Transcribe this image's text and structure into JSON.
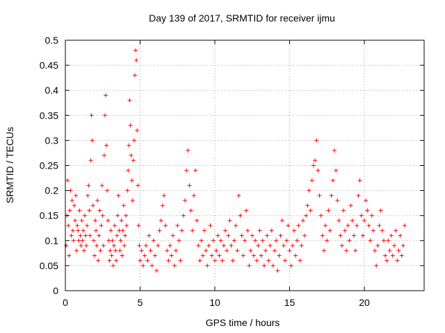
{
  "chart_data": {
    "type": "scatter",
    "title": "Day 139 of 2017, SRMTID for receiver ijmu",
    "xlabel": "GPS time / hours",
    "ylabel": "SRMTID / TECUs",
    "xlim": [
      0,
      24
    ],
    "ylim": [
      0,
      0.5
    ],
    "x_ticks": [
      0,
      5,
      10,
      15,
      20
    ],
    "x_tick_labels": [
      "0",
      "5",
      "10",
      "15",
      "20"
    ],
    "y_ticks": [
      0,
      0.05,
      0.1,
      0.15,
      0.2,
      0.25,
      0.3,
      0.35,
      0.4,
      0.45,
      0.5
    ],
    "y_tick_labels": [
      "0",
      "0.05",
      "0.1",
      "0.15",
      "0.2",
      "0.25",
      "0.3",
      "0.35",
      "0.4",
      "0.45",
      "0.5"
    ],
    "grid": true,
    "marker": "plus",
    "color": "#ff0000",
    "series": [
      {
        "points": [
          [
            0.05,
            0.09
          ],
          [
            0.1,
            0.15
          ],
          [
            0.15,
            0.22
          ],
          [
            0.2,
            0.13
          ],
          [
            0.25,
            0.07
          ],
          [
            0.3,
            0.16
          ],
          [
            0.35,
            0.2
          ],
          [
            0.4,
            0.11
          ],
          [
            0.45,
            0.18
          ],
          [
            0.5,
            0.12
          ],
          [
            0.55,
            0.1
          ],
          [
            0.6,
            0.17
          ],
          [
            0.65,
            0.14
          ],
          [
            0.7,
            0.19
          ],
          [
            0.75,
            0.08
          ],
          [
            0.8,
            0.13
          ],
          [
            0.85,
            0.12
          ],
          [
            0.9,
            0.1
          ],
          [
            0.95,
            0.16
          ],
          [
            1.0,
            0.11
          ],
          [
            1.05,
            0.09
          ],
          [
            1.1,
            0.14
          ],
          [
            1.15,
            0.1
          ],
          [
            1.2,
            0.12
          ],
          [
            1.25,
            0.08
          ],
          [
            1.3,
            0.15
          ],
          [
            1.35,
            0.11
          ],
          [
            1.4,
            0.09
          ],
          [
            1.45,
            0.13
          ],
          [
            1.5,
            0.19
          ],
          [
            1.55,
            0.21
          ],
          [
            1.6,
            0.16
          ],
          [
            1.65,
            0.11
          ],
          [
            1.7,
            0.26
          ],
          [
            1.75,
            0.35
          ],
          [
            1.8,
            0.3
          ],
          [
            1.85,
            0.17
          ],
          [
            1.9,
            0.1
          ],
          [
            1.95,
            0.07
          ],
          [
            2.0,
            0.14
          ],
          [
            2.05,
            0.12
          ],
          [
            2.1,
            0.09
          ],
          [
            2.15,
            0.18
          ],
          [
            2.2,
            0.06
          ],
          [
            2.25,
            0.11
          ],
          [
            2.3,
            0.16
          ],
          [
            2.35,
            0.08
          ],
          [
            2.4,
            0.13
          ],
          [
            2.45,
            0.21
          ],
          [
            2.5,
            0.15
          ],
          [
            2.55,
            0.09
          ],
          [
            2.6,
            0.27
          ],
          [
            2.65,
            0.35
          ],
          [
            2.7,
            0.39
          ],
          [
            2.75,
            0.29
          ],
          [
            2.8,
            0.2
          ],
          [
            2.85,
            0.14
          ],
          [
            2.9,
            0.1
          ],
          [
            2.95,
            0.06
          ],
          [
            3.0,
            0.08
          ],
          [
            3.05,
            0.12
          ],
          [
            3.1,
            0.07
          ],
          [
            3.15,
            0.1
          ],
          [
            3.2,
            0.05
          ],
          [
            3.25,
            0.09
          ],
          [
            3.3,
            0.13
          ],
          [
            3.35,
            0.08
          ],
          [
            3.4,
            0.06
          ],
          [
            3.45,
            0.11
          ],
          [
            3.5,
            0.15
          ],
          [
            3.55,
            0.19
          ],
          [
            3.6,
            0.12
          ],
          [
            3.65,
            0.08
          ],
          [
            3.7,
            0.1
          ],
          [
            3.75,
            0.14
          ],
          [
            3.8,
            0.07
          ],
          [
            3.85,
            0.12
          ],
          [
            3.9,
            0.17
          ],
          [
            3.95,
            0.09
          ],
          [
            4.0,
            0.11
          ],
          [
            4.05,
            0.15
          ],
          [
            4.1,
            0.13
          ],
          [
            4.15,
            0.2
          ],
          [
            4.2,
            0.24
          ],
          [
            4.25,
            0.29
          ],
          [
            4.3,
            0.38
          ],
          [
            4.35,
            0.33
          ],
          [
            4.4,
            0.27
          ],
          [
            4.45,
            0.22
          ],
          [
            4.5,
            0.18
          ],
          [
            4.55,
            0.26
          ],
          [
            4.6,
            0.3
          ],
          [
            4.65,
            0.43
          ],
          [
            4.7,
            0.48
          ],
          [
            4.75,
            0.46
          ],
          [
            4.8,
            0.32
          ],
          [
            4.85,
            0.21
          ],
          [
            4.9,
            0.13
          ],
          [
            4.95,
            0.09
          ],
          [
            5.0,
            0.06
          ],
          [
            5.1,
            0.08
          ],
          [
            5.2,
            0.05
          ],
          [
            5.3,
            0.07
          ],
          [
            5.4,
            0.09
          ],
          [
            5.5,
            0.06
          ],
          [
            5.6,
            0.11
          ],
          [
            5.7,
            0.08
          ],
          [
            5.8,
            0.05
          ],
          [
            5.9,
            0.1
          ],
          [
            6.0,
            0.07
          ],
          [
            6.1,
            0.04
          ],
          [
            6.2,
            0.09
          ],
          [
            6.3,
            0.12
          ],
          [
            6.4,
            0.14
          ],
          [
            6.5,
            0.17
          ],
          [
            6.6,
            0.19
          ],
          [
            6.7,
            0.13
          ],
          [
            6.8,
            0.08
          ],
          [
            6.9,
            0.06
          ],
          [
            7.0,
            0.09
          ],
          [
            7.1,
            0.07
          ],
          [
            7.2,
            0.11
          ],
          [
            7.3,
            0.05
          ],
          [
            7.4,
            0.08
          ],
          [
            7.5,
            0.13
          ],
          [
            7.6,
            0.1
          ],
          [
            7.7,
            0.06
          ],
          [
            7.8,
            0.12
          ],
          [
            7.9,
            0.15
          ],
          [
            8.0,
            0.18
          ],
          [
            8.1,
            0.24
          ],
          [
            8.2,
            0.28
          ],
          [
            8.3,
            0.21
          ],
          [
            8.4,
            0.16
          ],
          [
            8.5,
            0.12
          ],
          [
            8.6,
            0.19
          ],
          [
            8.7,
            0.24
          ],
          [
            8.8,
            0.14
          ],
          [
            8.9,
            0.09
          ],
          [
            9.0,
            0.06
          ],
          [
            9.1,
            0.1
          ],
          [
            9.2,
            0.07
          ],
          [
            9.3,
            0.12
          ],
          [
            9.4,
            0.08
          ],
          [
            9.5,
            0.05
          ],
          [
            9.6,
            0.09
          ],
          [
            9.7,
            0.13
          ],
          [
            9.8,
            0.07
          ],
          [
            9.9,
            0.1
          ],
          [
            10.0,
            0.06
          ],
          [
            10.1,
            0.08
          ],
          [
            10.2,
            0.11
          ],
          [
            10.3,
            0.07
          ],
          [
            10.4,
            0.1
          ],
          [
            10.5,
            0.06
          ],
          [
            10.6,
            0.09
          ],
          [
            10.7,
            0.12
          ],
          [
            10.8,
            0.08
          ],
          [
            10.9,
            0.11
          ],
          [
            11.0,
            0.14
          ],
          [
            11.1,
            0.09
          ],
          [
            11.2,
            0.06
          ],
          [
            11.3,
            0.1
          ],
          [
            11.4,
            0.13
          ],
          [
            11.5,
            0.08
          ],
          [
            11.6,
            0.19
          ],
          [
            11.7,
            0.15
          ],
          [
            11.8,
            0.11
          ],
          [
            11.9,
            0.07
          ],
          [
            12.0,
            0.1
          ],
          [
            12.1,
            0.16
          ],
          [
            12.2,
            0.12
          ],
          [
            12.3,
            0.05
          ],
          [
            12.4,
            0.08
          ],
          [
            12.5,
            0.11
          ],
          [
            12.6,
            0.07
          ],
          [
            12.7,
            0.1
          ],
          [
            12.8,
            0.06
          ],
          [
            12.9,
            0.09
          ],
          [
            13.0,
            0.12
          ],
          [
            13.1,
            0.07
          ],
          [
            13.2,
            0.1
          ],
          [
            13.3,
            0.05
          ],
          [
            13.4,
            0.08
          ],
          [
            13.5,
            0.11
          ],
          [
            13.6,
            0.06
          ],
          [
            13.7,
            0.09
          ],
          [
            13.8,
            0.12
          ],
          [
            13.9,
            0.05
          ],
          [
            14.0,
            0.08
          ],
          [
            14.1,
            0.1
          ],
          [
            14.2,
            0.04
          ],
          [
            14.3,
            0.07
          ],
          [
            14.4,
            0.11
          ],
          [
            14.5,
            0.14
          ],
          [
            14.6,
            0.09
          ],
          [
            14.7,
            0.06
          ],
          [
            14.8,
            0.1
          ],
          [
            14.9,
            0.13
          ],
          [
            15.0,
            0.08
          ],
          [
            15.1,
            0.05
          ],
          [
            15.2,
            0.09
          ],
          [
            15.3,
            0.12
          ],
          [
            15.4,
            0.07
          ],
          [
            15.5,
            0.1
          ],
          [
            15.6,
            0.13
          ],
          [
            15.7,
            0.06
          ],
          [
            15.8,
            0.09
          ],
          [
            15.9,
            0.14
          ],
          [
            16.0,
            0.11
          ],
          [
            16.1,
            0.15
          ],
          [
            16.2,
            0.17
          ],
          [
            16.3,
            0.2
          ],
          [
            16.4,
            0.16
          ],
          [
            16.5,
            0.22
          ],
          [
            16.6,
            0.25
          ],
          [
            16.7,
            0.26
          ],
          [
            16.8,
            0.3
          ],
          [
            16.9,
            0.24
          ],
          [
            17.0,
            0.19
          ],
          [
            17.1,
            0.15
          ],
          [
            17.2,
            0.11
          ],
          [
            17.3,
            0.08
          ],
          [
            17.4,
            0.13
          ],
          [
            17.5,
            0.1
          ],
          [
            17.6,
            0.16
          ],
          [
            17.7,
            0.12
          ],
          [
            17.8,
            0.19
          ],
          [
            17.9,
            0.22
          ],
          [
            18.0,
            0.28
          ],
          [
            18.1,
            0.24
          ],
          [
            18.2,
            0.18
          ],
          [
            18.3,
            0.14
          ],
          [
            18.4,
            0.11
          ],
          [
            18.5,
            0.09
          ],
          [
            18.6,
            0.16
          ],
          [
            18.7,
            0.12
          ],
          [
            18.8,
            0.08
          ],
          [
            18.9,
            0.13
          ],
          [
            19.0,
            0.1
          ],
          [
            19.1,
            0.17
          ],
          [
            19.2,
            0.14
          ],
          [
            19.3,
            0.11
          ],
          [
            19.4,
            0.08
          ],
          [
            19.5,
            0.13
          ],
          [
            19.6,
            0.19
          ],
          [
            19.7,
            0.22
          ],
          [
            19.8,
            0.15
          ],
          [
            19.9,
            0.11
          ],
          [
            20.0,
            0.14
          ],
          [
            20.1,
            0.18
          ],
          [
            20.2,
            0.16
          ],
          [
            20.3,
            0.13
          ],
          [
            20.4,
            0.1
          ],
          [
            20.5,
            0.15
          ],
          [
            20.6,
            0.12
          ],
          [
            20.7,
            0.08
          ],
          [
            20.8,
            0.05
          ],
          [
            20.9,
            0.09
          ],
          [
            21.0,
            0.13
          ],
          [
            21.1,
            0.16
          ],
          [
            21.2,
            0.12
          ],
          [
            21.3,
            0.1
          ],
          [
            21.4,
            0.07
          ],
          [
            21.5,
            0.06
          ],
          [
            21.6,
            0.1
          ],
          [
            21.7,
            0.08
          ],
          [
            21.8,
            0.11
          ],
          [
            21.9,
            0.07
          ],
          [
            22.0,
            0.09
          ],
          [
            22.1,
            0.12
          ],
          [
            22.2,
            0.06
          ],
          [
            22.3,
            0.08
          ],
          [
            22.4,
            0.11
          ],
          [
            22.5,
            0.07
          ],
          [
            22.6,
            0.09
          ],
          [
            22.7,
            0.13
          ]
        ]
      }
    ]
  }
}
